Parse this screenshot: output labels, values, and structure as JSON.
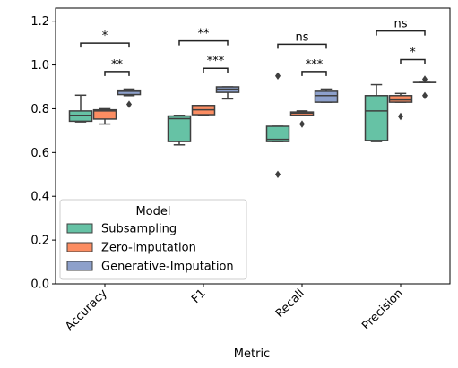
{
  "chart_data": {
    "type": "box",
    "xlabel": "Metric",
    "ylabel": "",
    "ylim": [
      0.0,
      1.26
    ],
    "yticks": [
      0.0,
      0.2,
      0.4,
      0.6,
      0.8,
      1.0,
      1.2
    ],
    "ytick_labels": [
      "0.0",
      "0.2",
      "0.4",
      "0.6",
      "0.8",
      "1.0",
      "1.2"
    ],
    "grid": false,
    "categories": [
      "Accuracy",
      "F1",
      "Recall",
      "Precision"
    ],
    "legend": {
      "title": "Model",
      "placement": "lower-left"
    },
    "series": [
      {
        "name": "Subsampling",
        "color": "#66c2a5",
        "boxes": [
          {
            "whislo": 0.74,
            "q1": 0.743,
            "med": 0.77,
            "q3": 0.79,
            "whishi": 0.862,
            "fliers": []
          },
          {
            "whislo": 0.635,
            "q1": 0.65,
            "med": 0.755,
            "q3": 0.767,
            "whishi": 0.77,
            "fliers": []
          },
          {
            "whislo": 0.65,
            "q1": 0.65,
            "med": 0.66,
            "q3": 0.72,
            "whishi": 0.72,
            "fliers": [
              0.95,
              0.5
            ]
          },
          {
            "whislo": 0.65,
            "q1": 0.655,
            "med": 0.79,
            "q3": 0.86,
            "whishi": 0.91,
            "fliers": []
          }
        ]
      },
      {
        "name": "Zero-Imputation",
        "color": "#fc8d62",
        "boxes": [
          {
            "whislo": 0.73,
            "q1": 0.753,
            "med": 0.79,
            "q3": 0.795,
            "whishi": 0.8,
            "fliers": []
          },
          {
            "whislo": 0.77,
            "q1": 0.773,
            "med": 0.795,
            "q3": 0.815,
            "whishi": 0.815,
            "fliers": []
          },
          {
            "whislo": 0.77,
            "q1": 0.77,
            "med": 0.78,
            "q3": 0.785,
            "whishi": 0.79,
            "fliers": [
              0.73
            ]
          },
          {
            "whislo": 0.83,
            "q1": 0.83,
            "med": 0.84,
            "q3": 0.86,
            "whishi": 0.87,
            "fliers": [
              0.765
            ]
          }
        ]
      },
      {
        "name": "Generative-Imputation",
        "color": "#8da0cb",
        "boxes": [
          {
            "whislo": 0.86,
            "q1": 0.865,
            "med": 0.88,
            "q3": 0.885,
            "whishi": 0.89,
            "fliers": [
              0.82
            ]
          },
          {
            "whislo": 0.845,
            "q1": 0.875,
            "med": 0.89,
            "q3": 0.9,
            "whishi": 0.9,
            "fliers": []
          },
          {
            "whislo": 0.83,
            "q1": 0.83,
            "med": 0.86,
            "q3": 0.88,
            "whishi": 0.89,
            "fliers": []
          },
          {
            "whislo": 0.92,
            "q1": 0.92,
            "med": 0.92,
            "q3": 0.92,
            "whishi": 0.92,
            "fliers": [
              0.935,
              0.86
            ]
          }
        ]
      }
    ],
    "annotations": [
      {
        "category": 0,
        "from": 0,
        "to": 2,
        "y": 1.1,
        "label": "*"
      },
      {
        "category": 0,
        "from": 1,
        "to": 2,
        "y": 0.97,
        "label": "**"
      },
      {
        "category": 1,
        "from": 0,
        "to": 2,
        "y": 1.11,
        "label": "**"
      },
      {
        "category": 1,
        "from": 1,
        "to": 2,
        "y": 0.985,
        "label": "***"
      },
      {
        "category": 2,
        "from": 0,
        "to": 2,
        "y": 1.095,
        "label": "ns"
      },
      {
        "category": 2,
        "from": 1,
        "to": 2,
        "y": 0.97,
        "label": "***"
      },
      {
        "category": 3,
        "from": 0,
        "to": 2,
        "y": 1.155,
        "label": "ns"
      },
      {
        "category": 3,
        "from": 1,
        "to": 2,
        "y": 1.025,
        "label": "*"
      }
    ]
  }
}
